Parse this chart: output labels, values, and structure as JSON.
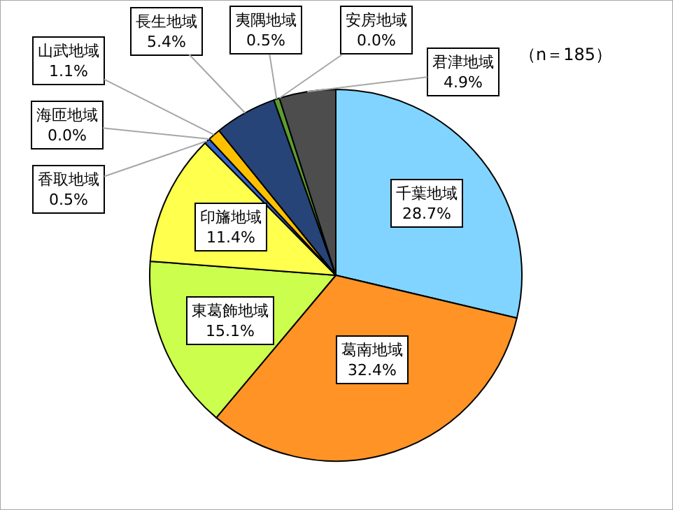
{
  "chart_data": {
    "type": "pie",
    "categories": [
      "千葉地域",
      "葛南地域",
      "東葛飾地域",
      "印旛地域",
      "香取地域",
      "海匝地域",
      "山武地域",
      "長生地域",
      "夷隅地域",
      "安房地域",
      "君津地域"
    ],
    "values": [
      28.7,
      32.4,
      15.1,
      11.4,
      0.5,
      0.0,
      1.1,
      5.4,
      0.5,
      0.0,
      4.9
    ],
    "value_labels": [
      "28.7%",
      "32.4%",
      "15.1%",
      "11.4%",
      "0.5%",
      "0.0%",
      "1.1%",
      "5.4%",
      "0.5%",
      "0.0%",
      "4.9%"
    ],
    "colors": [
      "#80d4ff",
      "#ff9326",
      "#ccff4d",
      "#ffff4d",
      "#3366cc",
      "#999999",
      "#ffc000",
      "#264478",
      "#5a9e2f",
      "#cccccc",
      "#4d4d4d"
    ],
    "annotations": [
      "（n＝185）"
    ],
    "legend": false
  }
}
